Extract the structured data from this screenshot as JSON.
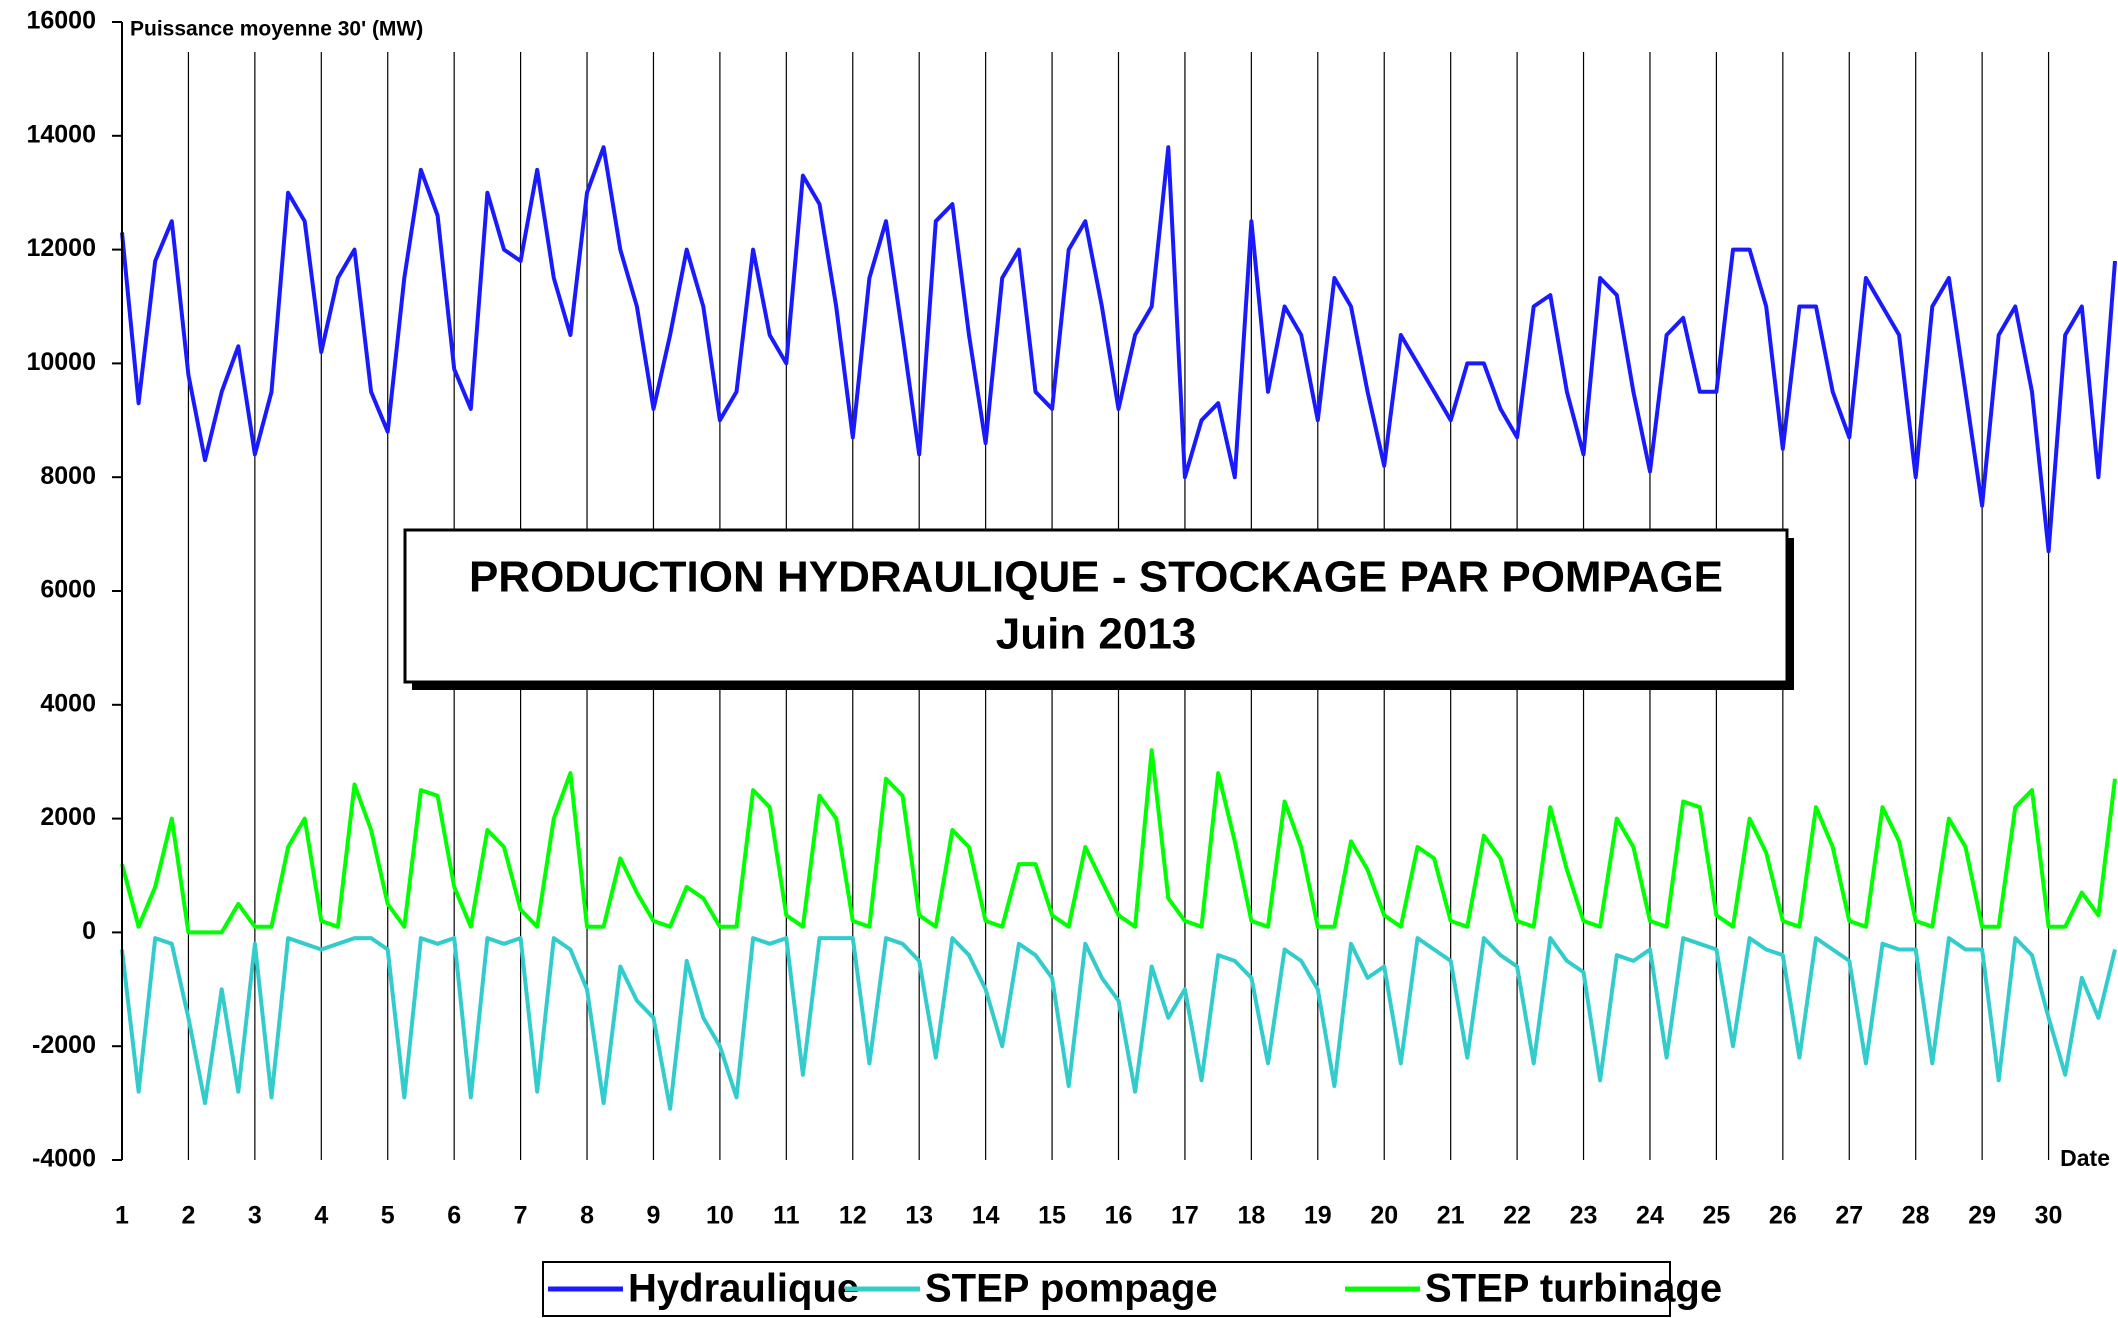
{
  "chart_data": {
    "type": "line",
    "title": "PRODUCTION HYDRAULIQUE - STOCKAGE PAR POMPAGE",
    "subtitle": "Juin  2013",
    "y_label": "Puissance moyenne 30' (MW)",
    "x_label": "Date",
    "xlim": [
      1,
      31
    ],
    "xticks": [
      1,
      2,
      3,
      4,
      5,
      6,
      7,
      8,
      9,
      10,
      11,
      12,
      13,
      14,
      15,
      16,
      17,
      18,
      19,
      20,
      21,
      22,
      23,
      24,
      25,
      26,
      27,
      28,
      29,
      30
    ],
    "ylim": [
      -4000,
      16000
    ],
    "yticks": [
      -4000,
      -2000,
      0,
      2000,
      4000,
      6000,
      8000,
      10000,
      12000,
      14000,
      16000
    ],
    "grid": "x",
    "legend": "bottom",
    "x": [
      1,
      1.25,
      1.5,
      1.75,
      2,
      2.25,
      2.5,
      2.75,
      3,
      3.25,
      3.5,
      3.75,
      4,
      4.25,
      4.5,
      4.75,
      5,
      5.25,
      5.5,
      5.75,
      6,
      6.25,
      6.5,
      6.75,
      7,
      7.25,
      7.5,
      7.75,
      8,
      8.25,
      8.5,
      8.75,
      9,
      9.25,
      9.5,
      9.75,
      10,
      10.25,
      10.5,
      10.75,
      11,
      11.25,
      11.5,
      11.75,
      12,
      12.25,
      12.5,
      12.75,
      13,
      13.25,
      13.5,
      13.75,
      14,
      14.25,
      14.5,
      14.75,
      15,
      15.25,
      15.5,
      15.75,
      16,
      16.25,
      16.5,
      16.75,
      17,
      17.25,
      17.5,
      17.75,
      18,
      18.25,
      18.5,
      18.75,
      19,
      19.25,
      19.5,
      19.75,
      20,
      20.25,
      20.5,
      20.75,
      21,
      21.25,
      21.5,
      21.75,
      22,
      22.25,
      22.5,
      22.75,
      23,
      23.25,
      23.5,
      23.75,
      24,
      24.25,
      24.5,
      24.75,
      25,
      25.25,
      25.5,
      25.75,
      26,
      26.25,
      26.5,
      26.75,
      27,
      27.25,
      27.5,
      27.75,
      28,
      28.25,
      28.5,
      28.75,
      29,
      29.25,
      29.5,
      29.75,
      30,
      30.25,
      30.5,
      30.75,
      31
    ],
    "series": [
      {
        "name": "Hydraulique",
        "color": "#1a1aff",
        "values": [
          12300,
          9300,
          11800,
          12500,
          9800,
          8300,
          9500,
          10300,
          8400,
          9500,
          13000,
          12500,
          10200,
          11500,
          12000,
          9500,
          8800,
          11500,
          13400,
          12600,
          9900,
          9200,
          13000,
          12000,
          11800,
          13400,
          11500,
          10500,
          13000,
          13800,
          12000,
          11000,
          9200,
          10500,
          12000,
          11000,
          9000,
          9500,
          12000,
          10500,
          10000,
          13300,
          12800,
          11000,
          8700,
          11500,
          12500,
          10500,
          8400,
          12500,
          12800,
          10500,
          8600,
          11500,
          12000,
          9500,
          9200,
          12000,
          12500,
          11000,
          9200,
          10500,
          11000,
          13800,
          8000,
          9000,
          9300,
          8000,
          12500,
          9500,
          11000,
          10500,
          9000,
          11500,
          11000,
          9500,
          8200,
          10500,
          10000,
          9500,
          9000,
          10000,
          10000,
          9200,
          8700,
          11000,
          11200,
          9500,
          8400,
          11500,
          11200,
          9500,
          8100,
          10500,
          10800,
          9500,
          9500,
          12000,
          12000,
          11000,
          8500,
          11000,
          11000,
          9500,
          8700,
          11500,
          11000,
          10500,
          8000,
          11000,
          11500,
          9500,
          7500,
          10500,
          11000,
          9500,
          6700,
          10500,
          11000,
          8000,
          11800
        ]
      },
      {
        "name": "STEP pompage",
        "color": "#33cccc",
        "values": [
          -300,
          -2800,
          -100,
          -200,
          -1500,
          -3000,
          -1000,
          -2800,
          -200,
          -2900,
          -100,
          -200,
          -300,
          -200,
          -100,
          -100,
          -300,
          -2900,
          -100,
          -200,
          -100,
          -2900,
          -100,
          -200,
          -100,
          -2800,
          -100,
          -300,
          -1000,
          -3000,
          -600,
          -1200,
          -1500,
          -3100,
          -500,
          -1500,
          -2000,
          -2900,
          -100,
          -200,
          -100,
          -2500,
          -100,
          -100,
          -100,
          -2300,
          -100,
          -200,
          -500,
          -2200,
          -100,
          -400,
          -1000,
          -2000,
          -200,
          -400,
          -800,
          -2700,
          -200,
          -800,
          -1200,
          -2800,
          -600,
          -1500,
          -1000,
          -2600,
          -400,
          -500,
          -800,
          -2300,
          -300,
          -500,
          -1000,
          -2700,
          -200,
          -800,
          -600,
          -2300,
          -100,
          -300,
          -500,
          -2200,
          -100,
          -400,
          -600,
          -2300,
          -100,
          -500,
          -700,
          -2600,
          -400,
          -500,
          -300,
          -2200,
          -100,
          -200,
          -300,
          -2000,
          -100,
          -300,
          -400,
          -2200,
          -100,
          -300,
          -500,
          -2300,
          -200,
          -300,
          -300,
          -2300,
          -100,
          -300,
          -300,
          -2600,
          -100,
          -400,
          -1500,
          -2500,
          -800,
          -1500,
          -300
        ]
      },
      {
        "name": "STEP turbinage",
        "color": "#00ff00",
        "values": [
          1200,
          100,
          800,
          2000,
          0,
          0,
          0,
          500,
          100,
          100,
          1500,
          2000,
          200,
          100,
          2600,
          1800,
          500,
          100,
          2500,
          2400,
          800,
          100,
          1800,
          1500,
          400,
          100,
          2000,
          2800,
          100,
          100,
          1300,
          700,
          200,
          100,
          800,
          600,
          100,
          100,
          2500,
          2200,
          300,
          100,
          2400,
          2000,
          200,
          100,
          2700,
          2400,
          300,
          100,
          1800,
          1500,
          200,
          100,
          1200,
          1200,
          300,
          100,
          1500,
          900,
          300,
          100,
          3200,
          600,
          200,
          100,
          2800,
          1600,
          200,
          100,
          2300,
          1500,
          100,
          100,
          1600,
          1100,
          300,
          100,
          1500,
          1300,
          200,
          100,
          1700,
          1300,
          200,
          100,
          2200,
          1100,
          200,
          100,
          2000,
          1500,
          200,
          100,
          2300,
          2200,
          300,
          100,
          2000,
          1400,
          200,
          100,
          2200,
          1500,
          200,
          100,
          2200,
          1600,
          200,
          100,
          2000,
          1500,
          100,
          100,
          2200,
          2500,
          100,
          100,
          700,
          300,
          2700
        ]
      }
    ]
  }
}
